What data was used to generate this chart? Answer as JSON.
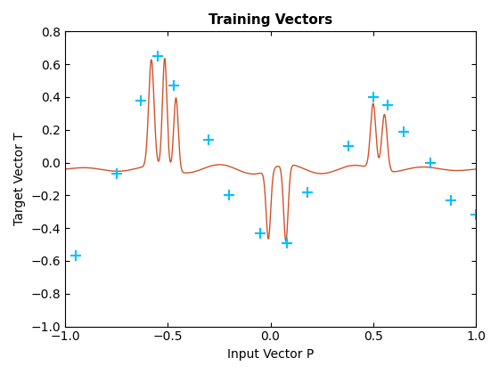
{
  "title": "Training Vectors",
  "xlabel": "Input Vector P",
  "ylabel": "Target Vector T",
  "xlim": [
    -1,
    1
  ],
  "ylim": [
    -1,
    0.8
  ],
  "yticks": [
    -1.0,
    -0.8,
    -0.6,
    -0.4,
    -0.2,
    0.0,
    0.2,
    0.4,
    0.6,
    0.8
  ],
  "xticks": [
    -1.0,
    -0.5,
    0.0,
    0.5,
    1.0
  ],
  "line_color": "#D2522A",
  "marker_color": "#00BFFF",
  "scatter_x": [
    -0.95,
    -0.75,
    -0.63,
    -0.55,
    -0.47,
    -0.3,
    -0.2,
    -0.05,
    0.08,
    0.18,
    0.38,
    0.5,
    0.57,
    0.65,
    0.78,
    0.88,
    1.0
  ],
  "scatter_y": [
    -0.57,
    -0.07,
    0.38,
    0.65,
    0.47,
    0.14,
    -0.2,
    -0.43,
    -0.49,
    -0.18,
    0.1,
    0.4,
    0.35,
    0.19,
    0.0,
    -0.23,
    -0.32
  ],
  "curve_peaks": [
    [
      -0.58,
      0.65,
      0.013
    ],
    [
      -0.515,
      0.67,
      0.011
    ],
    [
      -0.46,
      0.45,
      0.011
    ],
    [
      -0.01,
      -0.42,
      0.011
    ],
    [
      0.075,
      -0.47,
      0.011
    ],
    [
      0.5,
      0.4,
      0.013
    ],
    [
      0.555,
      0.35,
      0.013
    ]
  ],
  "background_color": "#ffffff",
  "linewidth": 1.0,
  "markersize": 8,
  "markeredgewidth": 1.5
}
